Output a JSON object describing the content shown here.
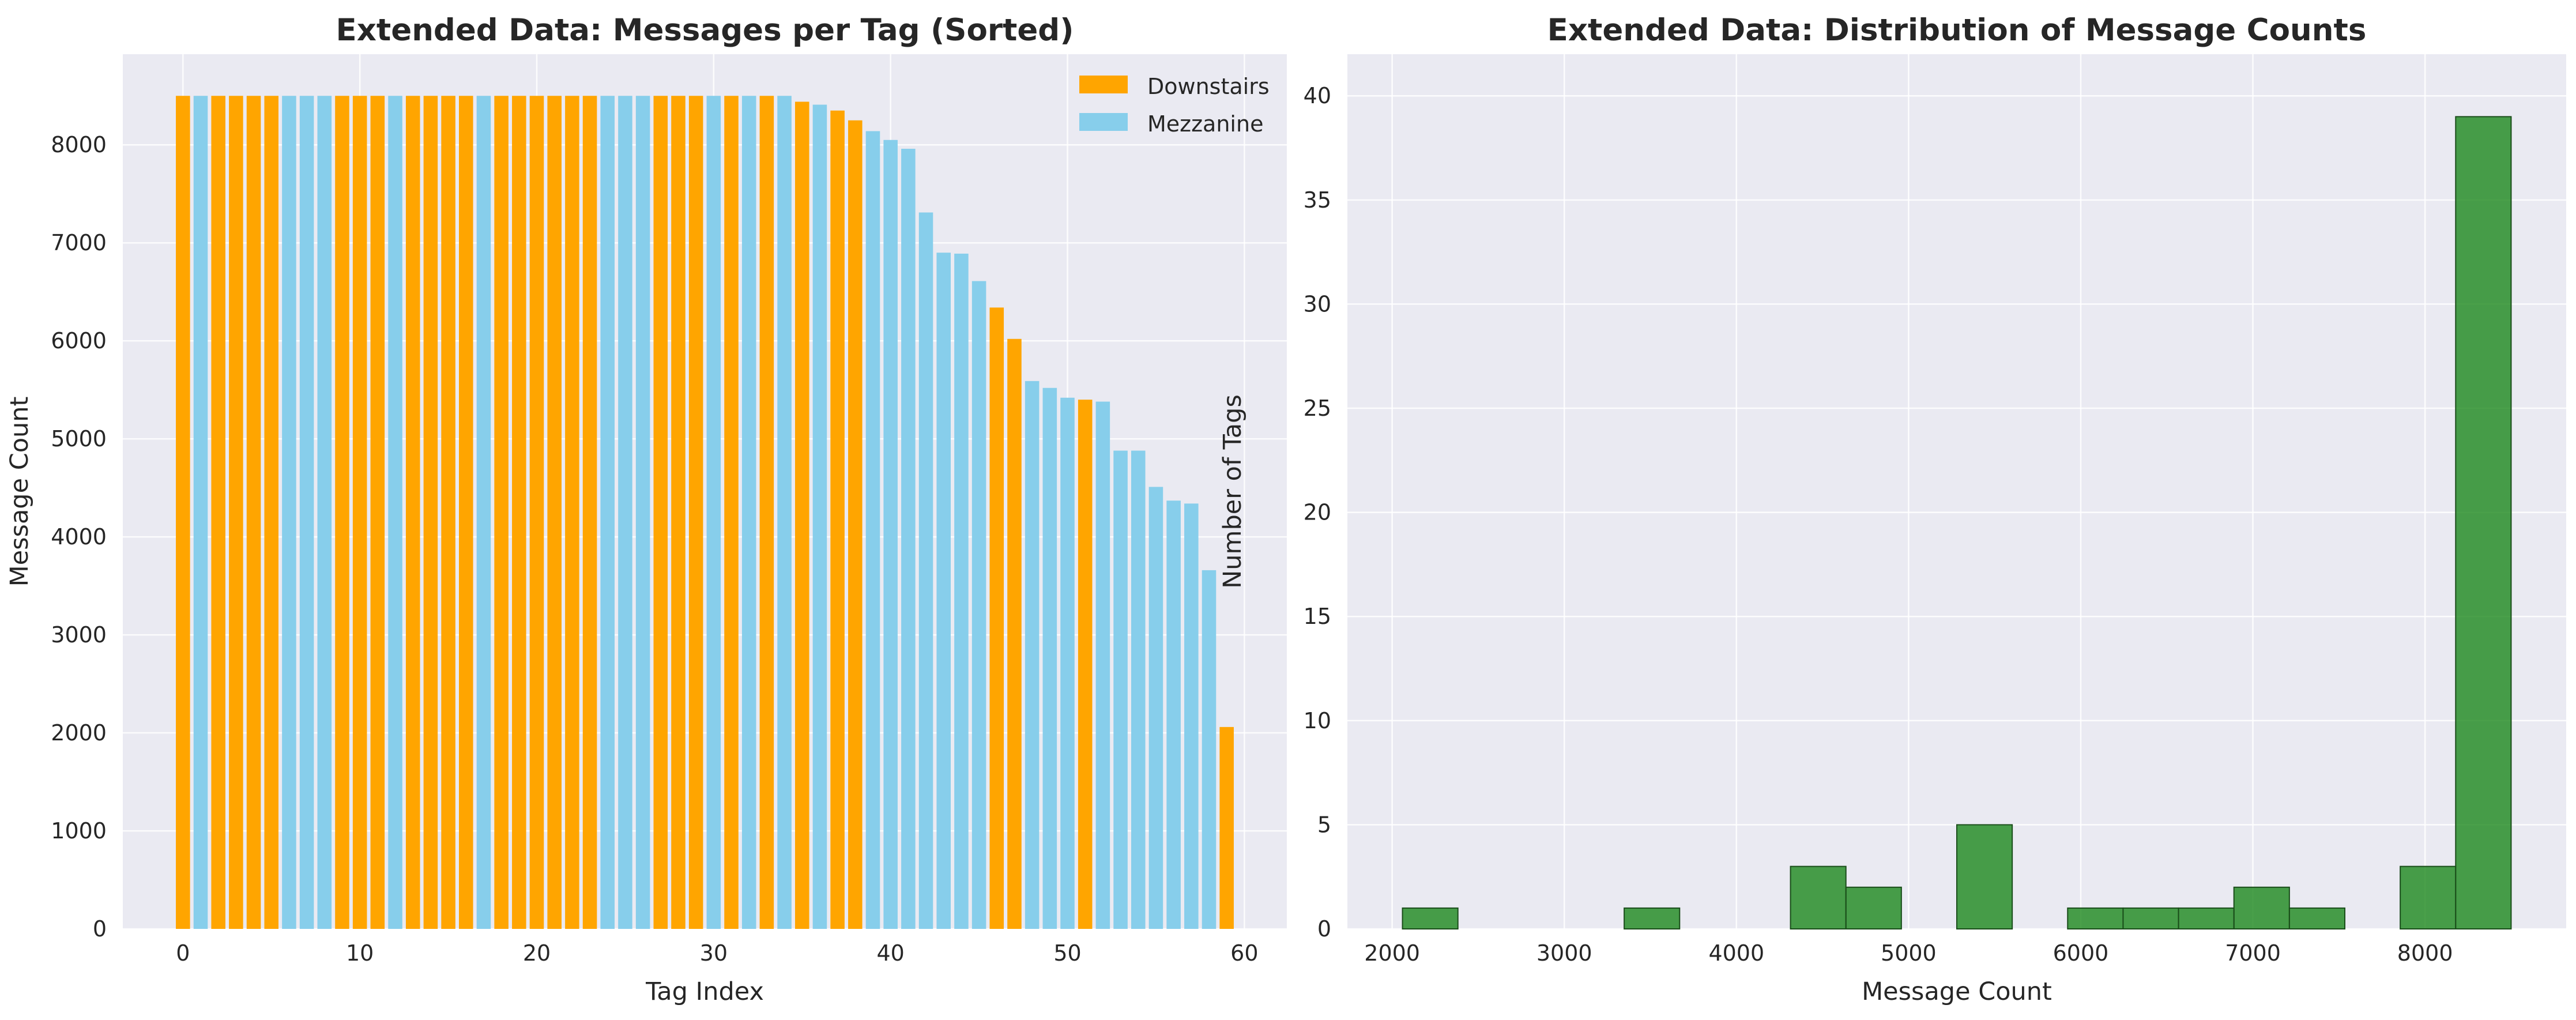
{
  "chart_data": [
    {
      "type": "bar",
      "title": "Extended Data: Messages per Tag (Sorted)",
      "xlabel": "Tag Index",
      "ylabel": "Message Count",
      "xlim": [
        -3.4,
        62.4
      ],
      "ylim": [
        0,
        8925
      ],
      "xticks": [
        0,
        10,
        20,
        30,
        40,
        50,
        60
      ],
      "yticks": [
        0,
        1000,
        2000,
        3000,
        4000,
        5000,
        6000,
        7000,
        8000
      ],
      "grid": true,
      "legend_position": "top-right",
      "legend": [
        {
          "label": "Downstairs",
          "color": "#FFA500"
        },
        {
          "label": "Mezzanine",
          "color": "#87CEEB"
        }
      ],
      "x": [
        0,
        1,
        2,
        3,
        4,
        5,
        6,
        7,
        8,
        9,
        10,
        11,
        12,
        13,
        14,
        15,
        16,
        17,
        18,
        19,
        20,
        21,
        22,
        23,
        24,
        25,
        26,
        27,
        28,
        29,
        30,
        31,
        32,
        33,
        34,
        35,
        36,
        37,
        38,
        39,
        40,
        41,
        42,
        43,
        44,
        45,
        46,
        47,
        48,
        49,
        50,
        51,
        52,
        53,
        54,
        55,
        56,
        57,
        58,
        59
      ],
      "values": [
        8500,
        8500,
        8500,
        8500,
        8500,
        8500,
        8500,
        8500,
        8500,
        8500,
        8500,
        8500,
        8500,
        8500,
        8500,
        8500,
        8500,
        8500,
        8500,
        8500,
        8500,
        8500,
        8500,
        8500,
        8500,
        8500,
        8500,
        8500,
        8500,
        8500,
        8500,
        8500,
        8500,
        8500,
        8500,
        8440,
        8410,
        8350,
        8250,
        8140,
        8050,
        7960,
        7310,
        6900,
        6890,
        6610,
        6340,
        6020,
        5590,
        5520,
        5420,
        5400,
        5380,
        4880,
        4880,
        4510,
        4370,
        4340,
        3660,
        2060
      ],
      "groups": [
        "Downstairs",
        "Mezzanine",
        "Downstairs",
        "Downstairs",
        "Downstairs",
        "Downstairs",
        "Mezzanine",
        "Mezzanine",
        "Mezzanine",
        "Downstairs",
        "Downstairs",
        "Downstairs",
        "Mezzanine",
        "Downstairs",
        "Downstairs",
        "Downstairs",
        "Downstairs",
        "Mezzanine",
        "Downstairs",
        "Downstairs",
        "Downstairs",
        "Downstairs",
        "Downstairs",
        "Downstairs",
        "Mezzanine",
        "Mezzanine",
        "Mezzanine",
        "Downstairs",
        "Downstairs",
        "Downstairs",
        "Mezzanine",
        "Downstairs",
        "Mezzanine",
        "Downstairs",
        "Mezzanine",
        "Downstairs",
        "Mezzanine",
        "Downstairs",
        "Downstairs",
        "Mezzanine",
        "Mezzanine",
        "Mezzanine",
        "Mezzanine",
        "Mezzanine",
        "Mezzanine",
        "Mezzanine",
        "Downstairs",
        "Downstairs",
        "Mezzanine",
        "Mezzanine",
        "Mezzanine",
        "Downstairs",
        "Mezzanine",
        "Mezzanine",
        "Mezzanine",
        "Mezzanine",
        "Mezzanine",
        "Mezzanine",
        "Mezzanine",
        "Downstairs"
      ]
    },
    {
      "type": "histogram",
      "title": "Extended Data: Distribution of Message Counts",
      "xlabel": "Message Count",
      "ylabel": "Number of Tags",
      "xlim": [
        1740,
        8820
      ],
      "ylim": [
        0,
        42
      ],
      "xticks": [
        2000,
        3000,
        4000,
        5000,
        6000,
        7000,
        8000
      ],
      "yticks": [
        0,
        5,
        10,
        15,
        20,
        25,
        30,
        35,
        40
      ],
      "grid": true,
      "bar_color": "#228B22",
      "bins": [
        2060,
        2382,
        2704,
        3026,
        3348,
        3670,
        3992,
        4314,
        4636,
        4958,
        5280,
        5602,
        5924,
        6246,
        6568,
        6890,
        7212,
        7534,
        7856,
        8178,
        8500
      ],
      "counts": [
        1,
        0,
        0,
        0,
        1,
        0,
        0,
        3,
        2,
        0,
        5,
        0,
        1,
        1,
        1,
        2,
        1,
        0,
        3,
        39
      ]
    }
  ]
}
